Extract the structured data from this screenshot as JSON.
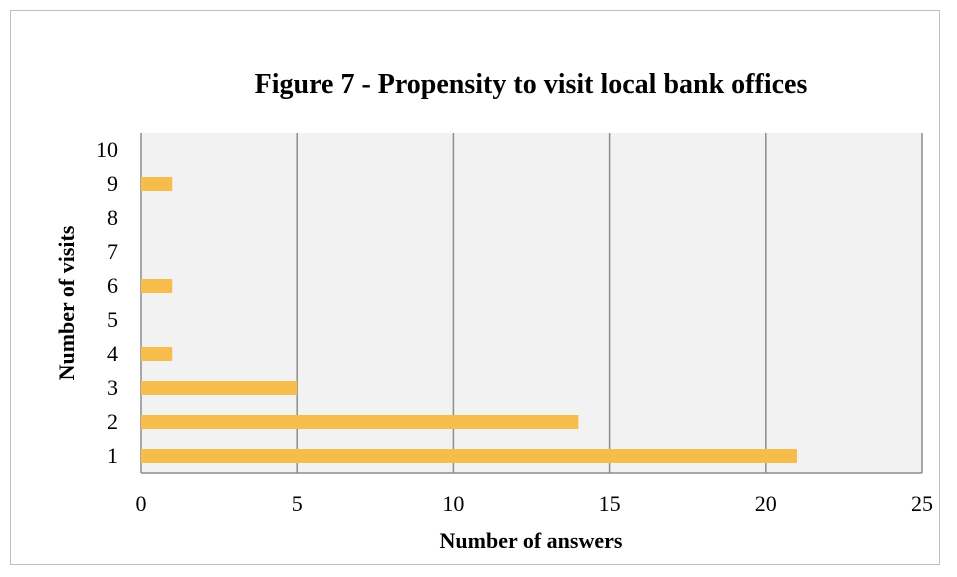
{
  "chart_data": {
    "type": "bar",
    "orientation": "horizontal",
    "title": "Figure 7 - Propensity to visit local bank offices",
    "xlabel": "Number of answers",
    "ylabel": "Number of visits",
    "categories": [
      "1",
      "2",
      "3",
      "4",
      "5",
      "6",
      "7",
      "8",
      "9",
      "10"
    ],
    "values": [
      21,
      14,
      5,
      1,
      0,
      1,
      0,
      0,
      1,
      0
    ],
    "xlim": [
      0,
      25
    ],
    "xticks": [
      "0",
      "5",
      "10",
      "15",
      "20",
      "25"
    ],
    "grid": "vertical major gridlines",
    "legend": "none",
    "colors": {
      "bar": "#f6bd4d",
      "plot_background": "#f2f2f2",
      "gridline": "#8c8c8c",
      "frame_border": "#bfbfbf"
    }
  }
}
